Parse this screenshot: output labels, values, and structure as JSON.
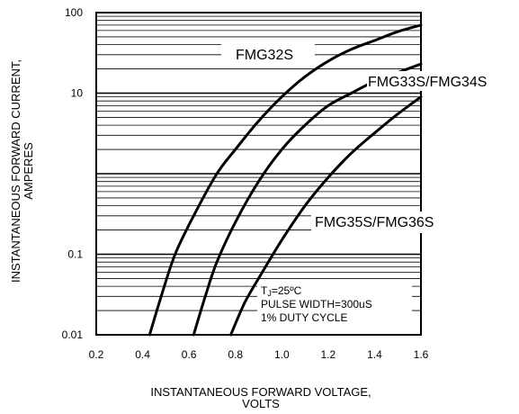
{
  "chart_data": {
    "type": "line",
    "title": "",
    "xlabel": [
      "INSTANTANEOUS FORWARD VOLTAGE,",
      "VOLTS"
    ],
    "ylabel": [
      "INSTANTANEOUS FORWARD CURRENT,",
      "AMPERES"
    ],
    "xlim": [
      0.2,
      1.6
    ],
    "ylim": [
      0.01,
      100
    ],
    "yscale": "log",
    "grid": "horizontal",
    "x_ticks": [
      "0.2",
      "0.4",
      "0.6",
      "0.8",
      "1.0",
      "1.2",
      "1.4",
      "1.6"
    ],
    "y_ticks": [
      "0.01",
      "0.1",
      "10",
      "100"
    ],
    "series": [
      {
        "name": "FMG32S",
        "points": [
          [
            0.43,
            0.01
          ],
          [
            0.48,
            0.03
          ],
          [
            0.54,
            0.1
          ],
          [
            0.62,
            0.3
          ],
          [
            0.72,
            1.0
          ],
          [
            0.8,
            2.0
          ],
          [
            0.9,
            4.5
          ],
          [
            1.0,
            9.0
          ],
          [
            1.1,
            16.0
          ],
          [
            1.2,
            25.0
          ],
          [
            1.3,
            35.0
          ],
          [
            1.4,
            45.0
          ],
          [
            1.5,
            58.0
          ],
          [
            1.6,
            70.0
          ]
        ]
      },
      {
        "name": "FMG33S/FMG34S",
        "points": [
          [
            0.62,
            0.01
          ],
          [
            0.67,
            0.03
          ],
          [
            0.72,
            0.08
          ],
          [
            0.8,
            0.25
          ],
          [
            0.9,
            0.8
          ],
          [
            1.0,
            2.0
          ],
          [
            1.1,
            4.0
          ],
          [
            1.2,
            7.0
          ],
          [
            1.3,
            10.0
          ],
          [
            1.4,
            14.0
          ],
          [
            1.5,
            18.0
          ],
          [
            1.6,
            23.0
          ]
        ]
      },
      {
        "name": "FMG35S/FMG36S",
        "points": [
          [
            0.78,
            0.01
          ],
          [
            0.84,
            0.025
          ],
          [
            0.9,
            0.05
          ],
          [
            1.0,
            0.15
          ],
          [
            1.1,
            0.4
          ],
          [
            1.2,
            0.9
          ],
          [
            1.3,
            1.8
          ],
          [
            1.4,
            3.2
          ],
          [
            1.5,
            5.5
          ],
          [
            1.6,
            9.0
          ]
        ]
      }
    ],
    "curve_labels": [
      "FMG32S",
      "FMG33S/FMG34S",
      "FMG35S/FMG36S"
    ],
    "annotation": {
      "line1_main": "T",
      "line1_sub": "J",
      "line1_rest": "=25ºC",
      "line2": "PULSE WIDTH=300uS",
      "line3": "1% DUTY CYCLE"
    }
  }
}
